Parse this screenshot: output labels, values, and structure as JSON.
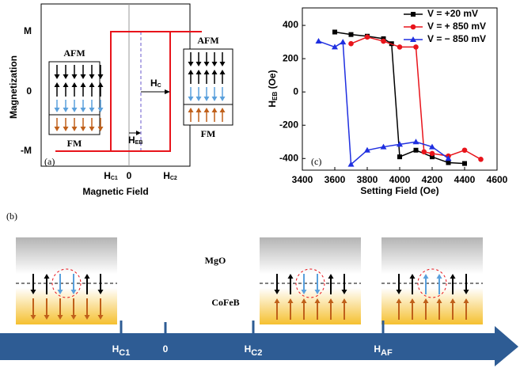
{
  "chart_data": {
    "type": "line",
    "panel_label": "(c)",
    "xlabel": "Setting Field (Oe)",
    "ylabel": {
      "main": "H",
      "sub": "EB",
      "unit": " (Oe)"
    },
    "xlim": [
      3400,
      4600
    ],
    "xticks": [
      3400,
      3600,
      3800,
      4000,
      4200,
      4400,
      4600
    ],
    "ylim": [
      -470,
      505
    ],
    "yticks": [
      -400,
      -200,
      0,
      200,
      400
    ],
    "legend": "top-right",
    "series": [
      {
        "name": "V =  +20 mV",
        "color": "#000000",
        "marker": "square",
        "x": [
          3600,
          3700,
          3800,
          3900,
          3950,
          4000,
          4100,
          4200,
          4300,
          4400
        ],
        "values": [
          360,
          345,
          335,
          320,
          290,
          -390,
          -350,
          -390,
          -425,
          -430
        ]
      },
      {
        "name": "V = + 850 mV",
        "color": "#e8141b",
        "marker": "circle",
        "x": [
          3700,
          3800,
          3900,
          4000,
          4100,
          4150,
          4200,
          4300,
          4400,
          4500
        ],
        "values": [
          290,
          330,
          305,
          270,
          270,
          -360,
          -370,
          -385,
          -350,
          -405
        ]
      },
      {
        "name": "V = − 850 mV",
        "color": "#1f2fe0",
        "marker": "triangle",
        "x": [
          3500,
          3600,
          3650,
          3700,
          3800,
          3900,
          4000,
          4100,
          4200,
          4300
        ],
        "values": [
          305,
          270,
          300,
          -435,
          -350,
          -330,
          -315,
          -300,
          -330,
          -400
        ]
      }
    ]
  },
  "panel_a": {
    "panel_label": "(a)",
    "ylabel": "Magnetization",
    "xlabel": "Magnetic Field",
    "yticks": [
      "M",
      "0",
      "-M"
    ],
    "xticks": [
      {
        "main": "H",
        "sub": "C1"
      },
      "0",
      {
        "main": "H",
        "sub": "C2"
      }
    ],
    "hc": "H",
    "hc_sub": "C",
    "heb": "H",
    "heb_sub": "EB",
    "left_inset": {
      "top": "AFM",
      "bottom": "FM"
    },
    "right_inset": {
      "top": "AFM",
      "bottom": "FM"
    }
  },
  "panel_b": {
    "panel_label": "(b)",
    "layer_top": "MgO",
    "layer_bottom": "CoFeB",
    "axis_labels": [
      {
        "main": "H",
        "sub": "C1"
      },
      {
        "main": "0",
        "sub": ""
      },
      {
        "main": "H",
        "sub": "C2"
      },
      {
        "main": "H",
        "sub": "AF"
      }
    ]
  }
}
